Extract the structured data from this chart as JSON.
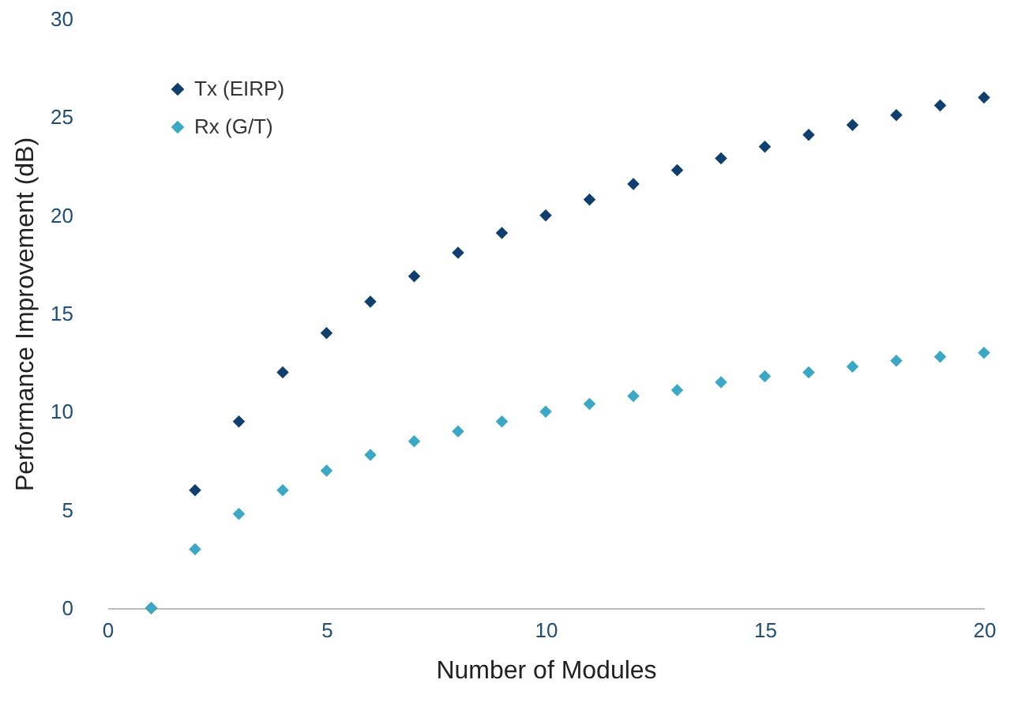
{
  "chart_data": {
    "type": "scatter",
    "xlabel": "Number of Modules",
    "ylabel": "Performance Improvement (dB)",
    "x": [
      1,
      2,
      3,
      4,
      5,
      6,
      7,
      8,
      9,
      10,
      11,
      12,
      13,
      14,
      15,
      16,
      17,
      18,
      19,
      20
    ],
    "series": [
      {
        "name": "Tx (EIRP)",
        "color": "#0e3f6e",
        "values": [
          0,
          6.0,
          9.5,
          12.0,
          14.0,
          15.6,
          16.9,
          18.1,
          19.1,
          20.0,
          20.8,
          21.6,
          22.3,
          22.9,
          23.5,
          24.1,
          24.6,
          25.1,
          25.6,
          26.0
        ]
      },
      {
        "name": "Rx (G/T)",
        "color": "#3aa9c6",
        "values": [
          0,
          3.0,
          4.8,
          6.0,
          7.0,
          7.8,
          8.5,
          9.0,
          9.5,
          10.0,
          10.4,
          10.8,
          11.1,
          11.5,
          11.8,
          12.0,
          12.3,
          12.6,
          12.8,
          13.0
        ]
      }
    ],
    "xlim": [
      0,
      20
    ],
    "ylim": [
      0,
      30
    ],
    "xticks": [
      0,
      5,
      10,
      15,
      20
    ],
    "yticks": [
      0,
      5,
      10,
      15,
      20,
      25,
      30
    ],
    "marker": "diamond",
    "legend": "top left",
    "grid": false
  }
}
